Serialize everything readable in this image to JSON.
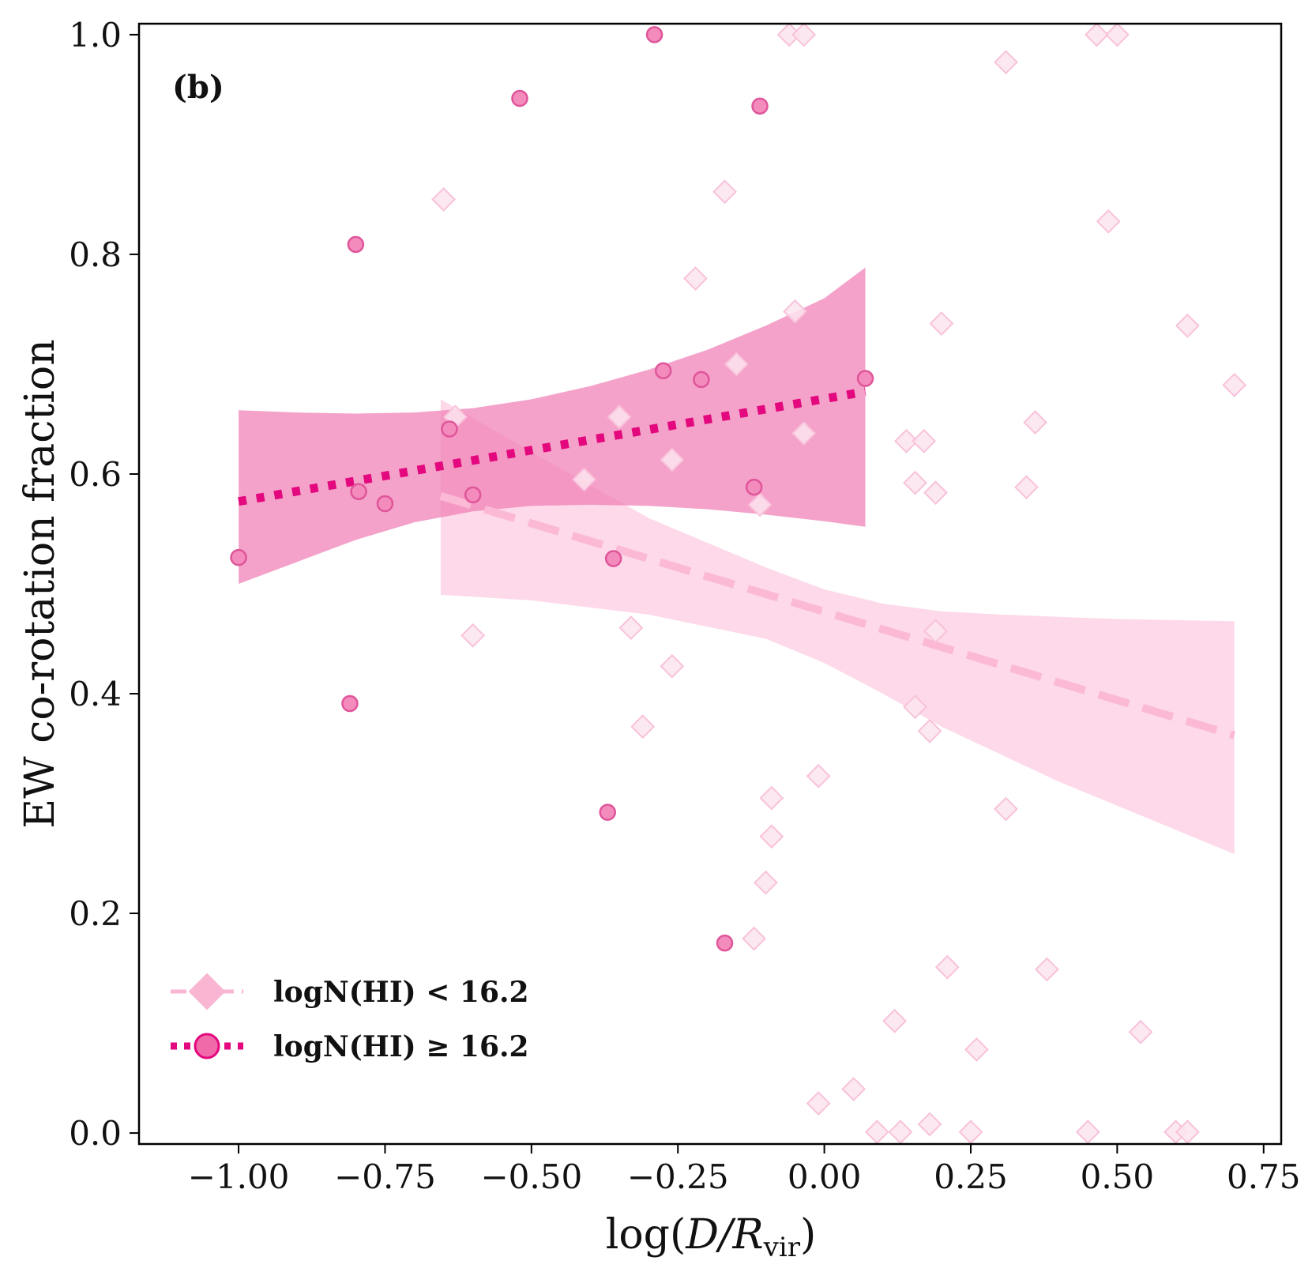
{
  "chart_data": {
    "type": "scatter",
    "panel_label": "(b)",
    "xlabel_main": "log(",
    "xlabel_italic": "D/R",
    "xlabel_sub": "vir",
    "xlabel_end": ")",
    "ylabel": "EW co-rotation fraction",
    "xlim": [
      -1.17,
      0.78
    ],
    "ylim": [
      -0.01,
      1.01
    ],
    "xticks": [
      -1.0,
      -0.75,
      -0.5,
      -0.25,
      0.0,
      0.25,
      0.5,
      0.75
    ],
    "xtick_labels": [
      "−1.00",
      "−0.75",
      "−0.50",
      "−0.25",
      "0.00",
      "0.25",
      "0.50",
      "0.75"
    ],
    "yticks": [
      0.0,
      0.2,
      0.4,
      0.6,
      0.8,
      1.0
    ],
    "ytick_labels": [
      "0.0",
      "0.2",
      "0.4",
      "0.6",
      "0.8",
      "1.0"
    ],
    "legend_position": "lower-left",
    "series": [
      {
        "name": "logN(HI) < 16.2",
        "legend_label": "logN(HI) < 16.2",
        "marker": "diamond",
        "color": "#f9b6d3",
        "line_style": "dashed",
        "points": [
          {
            "x": -0.65,
            "y": 0.85
          },
          {
            "x": -0.17,
            "y": 0.857
          },
          {
            "x": -0.22,
            "y": 0.778
          },
          {
            "x": -0.05,
            "y": 0.748
          },
          {
            "x": -0.15,
            "y": 0.7
          },
          {
            "x": -0.35,
            "y": 0.652
          },
          {
            "x": -0.63,
            "y": 0.652
          },
          {
            "x": -0.035,
            "y": 0.637
          },
          {
            "x": -0.26,
            "y": 0.613
          },
          {
            "x": -0.41,
            "y": 0.595
          },
          {
            "x": -0.11,
            "y": 0.572
          },
          {
            "x": -0.6,
            "y": 0.453
          },
          {
            "x": -0.33,
            "y": 0.46
          },
          {
            "x": -0.26,
            "y": 0.425
          },
          {
            "x": -0.31,
            "y": 0.37
          },
          {
            "x": -0.01,
            "y": 0.325
          },
          {
            "x": -0.09,
            "y": 0.305
          },
          {
            "x": -0.09,
            "y": 0.27
          },
          {
            "x": -0.1,
            "y": 0.228
          },
          {
            "x": -0.12,
            "y": 0.177
          },
          {
            "x": -0.01,
            "y": 0.027
          },
          {
            "x": 0.05,
            "y": 0.04
          },
          {
            "x": 0.09,
            "y": 0.001
          },
          {
            "x": 0.13,
            "y": 0.001
          },
          {
            "x": 0.18,
            "y": 0.008
          },
          {
            "x": 0.25,
            "y": 0.001
          },
          {
            "x": 0.12,
            "y": 0.102
          },
          {
            "x": 0.21,
            "y": 0.151
          },
          {
            "x": 0.26,
            "y": 0.076
          },
          {
            "x": 0.38,
            "y": 0.149
          },
          {
            "x": 0.54,
            "y": 0.092
          },
          {
            "x": 0.45,
            "y": 0.001
          },
          {
            "x": 0.6,
            "y": 0.001
          },
          {
            "x": 0.62,
            "y": 0.001
          },
          {
            "x": 0.14,
            "y": 0.63
          },
          {
            "x": 0.17,
            "y": 0.63
          },
          {
            "x": 0.155,
            "y": 0.592
          },
          {
            "x": 0.19,
            "y": 0.583
          },
          {
            "x": 0.19,
            "y": 0.457
          },
          {
            "x": 0.155,
            "y": 0.388
          },
          {
            "x": 0.18,
            "y": 0.366
          },
          {
            "x": 0.31,
            "y": 0.295
          },
          {
            "x": 0.2,
            "y": 0.737
          },
          {
            "x": 0.36,
            "y": 0.647
          },
          {
            "x": 0.345,
            "y": 0.588
          },
          {
            "x": 0.62,
            "y": 0.735
          },
          {
            "x": 0.7,
            "y": 0.681
          },
          {
            "x": 0.485,
            "y": 0.83
          },
          {
            "x": 0.31,
            "y": 0.975
          },
          {
            "x": 0.465,
            "y": 1.0
          },
          {
            "x": 0.5,
            "y": 1.0
          },
          {
            "x": -0.06,
            "y": 1.0
          },
          {
            "x": -0.035,
            "y": 1.0
          }
        ],
        "fit": {
          "x0": -0.655,
          "y0": 0.58,
          "x1": 0.7,
          "y1": 0.362
        },
        "band": {
          "x": [
            -0.655,
            -0.5,
            -0.3,
            -0.1,
            0.0,
            0.1,
            0.2,
            0.3,
            0.4,
            0.5,
            0.6,
            0.7
          ],
          "upper": [
            0.668,
            0.62,
            0.56,
            0.515,
            0.495,
            0.482,
            0.475,
            0.472,
            0.47,
            0.468,
            0.467,
            0.466
          ],
          "lower": [
            0.49,
            0.485,
            0.472,
            0.45,
            0.428,
            0.4,
            0.37,
            0.345,
            0.32,
            0.298,
            0.276,
            0.254
          ]
        }
      },
      {
        "name": "logN(HI) ≥ 16.2",
        "legend_label": "logN(HI) ≥ 16.2",
        "marker": "circle",
        "color": "#f06aaa",
        "line_color": "#e4087e",
        "line_style": "dotted",
        "points": [
          {
            "x": -1.0,
            "y": 0.524
          },
          {
            "x": -0.8,
            "y": 0.809
          },
          {
            "x": -0.795,
            "y": 0.584
          },
          {
            "x": -0.75,
            "y": 0.573
          },
          {
            "x": -0.81,
            "y": 0.391
          },
          {
            "x": -0.64,
            "y": 0.641
          },
          {
            "x": -0.6,
            "y": 0.581
          },
          {
            "x": -0.52,
            "y": 0.942
          },
          {
            "x": -0.37,
            "y": 0.292
          },
          {
            "x": -0.36,
            "y": 0.523
          },
          {
            "x": -0.29,
            "y": 1.0
          },
          {
            "x": -0.275,
            "y": 0.694
          },
          {
            "x": -0.21,
            "y": 0.686
          },
          {
            "x": -0.17,
            "y": 0.173
          },
          {
            "x": -0.11,
            "y": 0.935
          },
          {
            "x": -0.12,
            "y": 0.588
          },
          {
            "x": 0.07,
            "y": 0.687
          }
        ],
        "fit": {
          "x0": -1.0,
          "y0": 0.575,
          "x1": 0.07,
          "y1": 0.675
        },
        "band": {
          "x": [
            -1.0,
            -0.9,
            -0.8,
            -0.7,
            -0.6,
            -0.5,
            -0.4,
            -0.3,
            -0.2,
            -0.1,
            0.0,
            0.07
          ],
          "upper": [
            0.658,
            0.656,
            0.655,
            0.656,
            0.66,
            0.668,
            0.68,
            0.695,
            0.713,
            0.735,
            0.76,
            0.788
          ],
          "lower": [
            0.5,
            0.52,
            0.54,
            0.556,
            0.566,
            0.571,
            0.572,
            0.571,
            0.568,
            0.563,
            0.557,
            0.552
          ]
        }
      }
    ]
  }
}
